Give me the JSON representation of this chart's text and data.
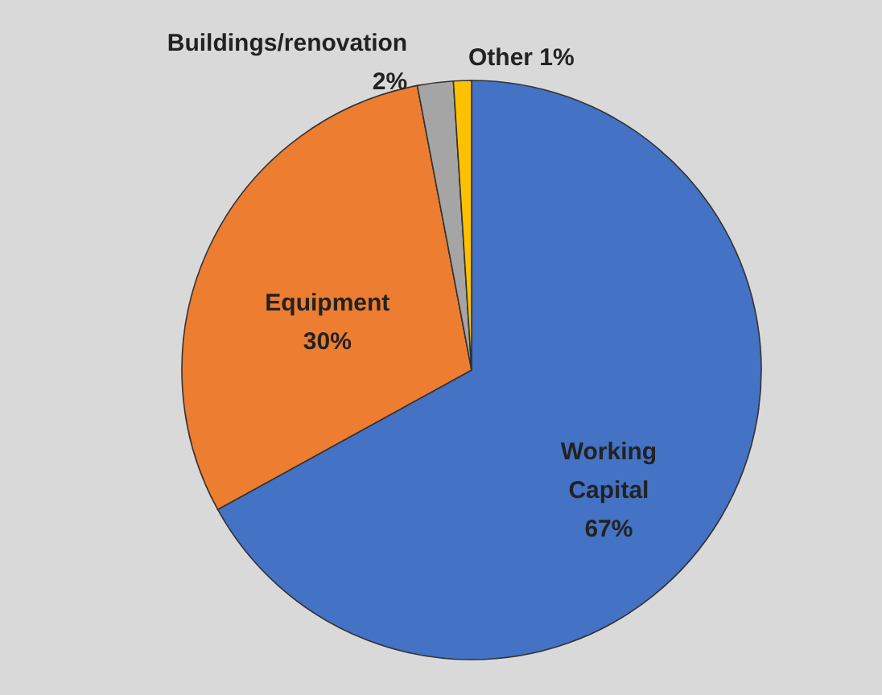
{
  "chart_data": {
    "type": "pie",
    "categories": [
      "Working Capital",
      "Equipment",
      "Buildings/renovation",
      "Other"
    ],
    "values": [
      67,
      30,
      2,
      1
    ],
    "value_labels": [
      "67%",
      "30%",
      "2%",
      "1%"
    ],
    "colors": [
      "#4472c4",
      "#ed7d31",
      "#a5a5a5",
      "#ffc000"
    ]
  }
}
